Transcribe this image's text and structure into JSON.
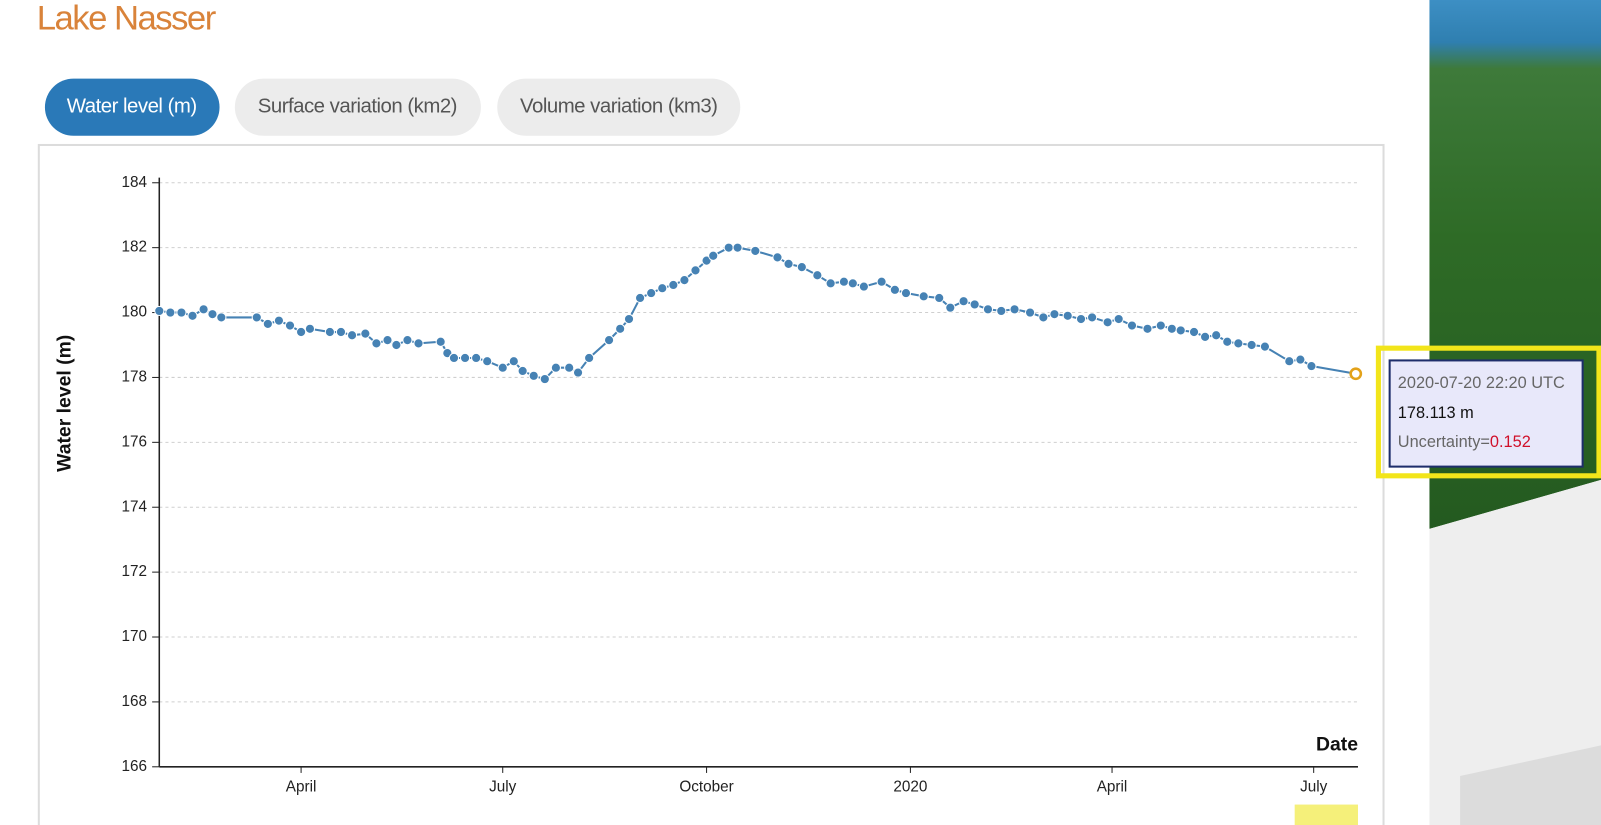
{
  "header": {
    "title": "Lake Nasser"
  },
  "tabs": [
    "Water level (m)",
    "Surface variation (km2)",
    "Volume variation (km3)"
  ],
  "chart_data": {
    "type": "line",
    "y_label": "Water level (m)",
    "x_label": "Date",
    "x": [
      "2019-01-27",
      "2019-02-01",
      "2019-02-06",
      "2019-02-11",
      "2019-02-16",
      "2019-02-20",
      "2019-02-24",
      "2019-03-12",
      "2019-03-17",
      "2019-03-22",
      "2019-03-27",
      "2019-04-01",
      "2019-04-05",
      "2019-04-14",
      "2019-04-19",
      "2019-04-24",
      "2019-04-30",
      "2019-05-05",
      "2019-05-10",
      "2019-05-14",
      "2019-05-19",
      "2019-05-24",
      "2019-06-03",
      "2019-06-06",
      "2019-06-09",
      "2019-06-14",
      "2019-06-19",
      "2019-06-24",
      "2019-07-01",
      "2019-07-06",
      "2019-07-10",
      "2019-07-15",
      "2019-07-20",
      "2019-07-25",
      "2019-07-31",
      "2019-08-04",
      "2019-08-09",
      "2019-08-18",
      "2019-08-23",
      "2019-08-27",
      "2019-09-01",
      "2019-09-06",
      "2019-09-11",
      "2019-09-16",
      "2019-09-21",
      "2019-09-26",
      "2019-10-01",
      "2019-10-04",
      "2019-10-11",
      "2019-10-15",
      "2019-10-23",
      "2019-11-02",
      "2019-11-07",
      "2019-11-13",
      "2019-11-20",
      "2019-11-26",
      "2019-12-02",
      "2019-12-06",
      "2019-12-11",
      "2019-12-19",
      "2019-12-25",
      "2019-12-30",
      "2020-01-07",
      "2020-01-14",
      "2020-01-19",
      "2020-01-25",
      "2020-01-30",
      "2020-02-05",
      "2020-02-11",
      "2020-02-17",
      "2020-02-24",
      "2020-03-01",
      "2020-03-06",
      "2020-03-12",
      "2020-03-18",
      "2020-03-23",
      "2020-03-30",
      "2020-04-04",
      "2020-04-10",
      "2020-04-17",
      "2020-04-23",
      "2020-04-28",
      "2020-05-02",
      "2020-05-08",
      "2020-05-13",
      "2020-05-18",
      "2020-05-23",
      "2020-05-28",
      "2020-06-03",
      "2020-06-09",
      "2020-06-20",
      "2020-06-25",
      "2020-06-30",
      "2020-07-20"
    ],
    "series": [
      {
        "name": "Water level (m)",
        "color": "#4682b4",
        "values": [
          180.05,
          180.0,
          180.0,
          179.9,
          180.1,
          179.95,
          179.85,
          179.85,
          179.65,
          179.75,
          179.6,
          179.4,
          179.5,
          179.4,
          179.4,
          179.3,
          179.35,
          179.05,
          179.15,
          179.0,
          179.15,
          179.05,
          179.1,
          178.75,
          178.6,
          178.6,
          178.6,
          178.5,
          178.3,
          178.5,
          178.2,
          178.05,
          177.95,
          178.3,
          178.3,
          178.15,
          178.6,
          179.15,
          179.5,
          179.8,
          180.45,
          180.6,
          180.75,
          180.85,
          181.0,
          181.3,
          181.6,
          181.75,
          182.0,
          182.0,
          181.9,
          181.7,
          181.5,
          181.4,
          181.15,
          180.9,
          180.95,
          180.9,
          180.8,
          180.95,
          180.7,
          180.6,
          180.5,
          180.45,
          180.15,
          180.35,
          180.25,
          180.1,
          180.05,
          180.1,
          180.0,
          179.85,
          179.95,
          179.9,
          179.8,
          179.85,
          179.7,
          179.8,
          179.6,
          179.5,
          179.6,
          179.5,
          179.45,
          179.4,
          179.25,
          179.3,
          179.1,
          179.05,
          179.0,
          178.95,
          178.5,
          178.55,
          178.35,
          178.113
        ]
      }
    ],
    "xlim": [
      "2019-01-27",
      "2020-07-21"
    ],
    "xticks": [
      {
        "value": "2019-04-01",
        "label": "April"
      },
      {
        "value": "2019-07-01",
        "label": "July"
      },
      {
        "value": "2019-10-01",
        "label": "October"
      },
      {
        "value": "2020-01-01",
        "label": "2020"
      },
      {
        "value": "2020-04-01",
        "label": "April"
      },
      {
        "value": "2020-07-01",
        "label": "July"
      }
    ],
    "ylim": [
      166,
      184
    ],
    "yticks": [
      166,
      168,
      170,
      172,
      174,
      176,
      178,
      180,
      182,
      184
    ],
    "grid": true,
    "tooltip": {
      "date": "2020-07-20 22:20 UTC",
      "value_label": "178.113 m",
      "uncertainty_label": "Uncertainty=",
      "uncertainty": 0.152
    }
  }
}
